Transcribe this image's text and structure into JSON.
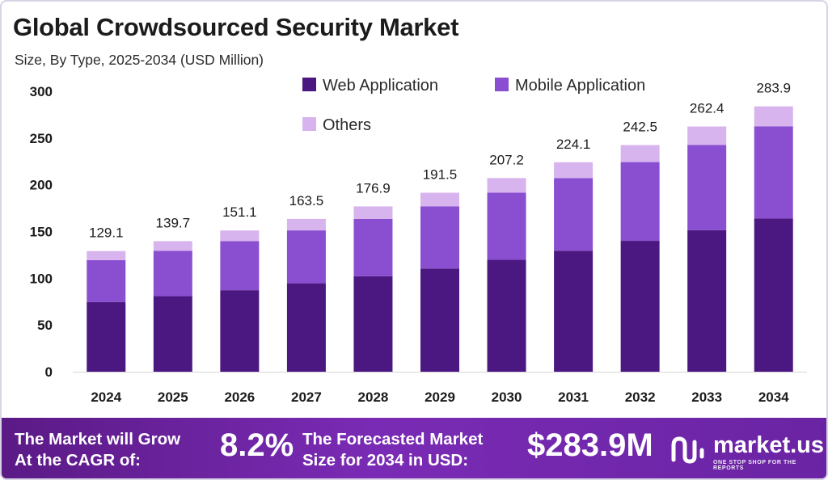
{
  "header": {
    "title": "Global Crowdsourced Security Market",
    "subtitle": "Size, By Type, 2025-2034 (USD Million)"
  },
  "colors": {
    "web": "#4b1780",
    "mobile": "#8a4fd0",
    "others": "#d8b4ee",
    "footer": "#6a24a3"
  },
  "chart_data": {
    "type": "bar",
    "stacked": true,
    "categories": [
      "2024",
      "2025",
      "2026",
      "2027",
      "2028",
      "2029",
      "2030",
      "2031",
      "2032",
      "2033",
      "2034"
    ],
    "series": [
      {
        "name": "Web Application",
        "values": [
          74.6,
          80.8,
          87.2,
          94.6,
          102.2,
          110.4,
          119.7,
          129.4,
          140.0,
          151.5,
          163.9
        ]
      },
      {
        "name": "Mobile Application",
        "values": [
          44.8,
          48.5,
          52.6,
          56.6,
          61.2,
          66.6,
          71.8,
          77.8,
          84.3,
          91.2,
          98.7
        ]
      },
      {
        "name": "Others",
        "values": [
          9.7,
          10.4,
          11.3,
          12.3,
          13.5,
          14.5,
          15.7,
          16.9,
          18.2,
          19.7,
          21.3
        ]
      }
    ],
    "totals": [
      "129.1",
      "139.7",
      "151.1",
      "163.5",
      "176.9",
      "191.5",
      "207.2",
      "224.1",
      "242.5",
      "262.4",
      "283.9"
    ],
    "yticks": [
      "0",
      "50",
      "100",
      "150",
      "200",
      "250",
      "300"
    ],
    "ylim": [
      0,
      300
    ],
    "grid": false,
    "legend_position": "top"
  },
  "footer": {
    "cagr_label": "The Market will Grow\nAt the CAGR of:",
    "cagr_value": "8.2%",
    "size_label": "The Forecasted Market\nSize for 2034 in USD:",
    "size_value": "$283.9M",
    "logo_name": "market.us",
    "logo_tagline": "ONE STOP SHOP FOR THE REPORTS"
  }
}
